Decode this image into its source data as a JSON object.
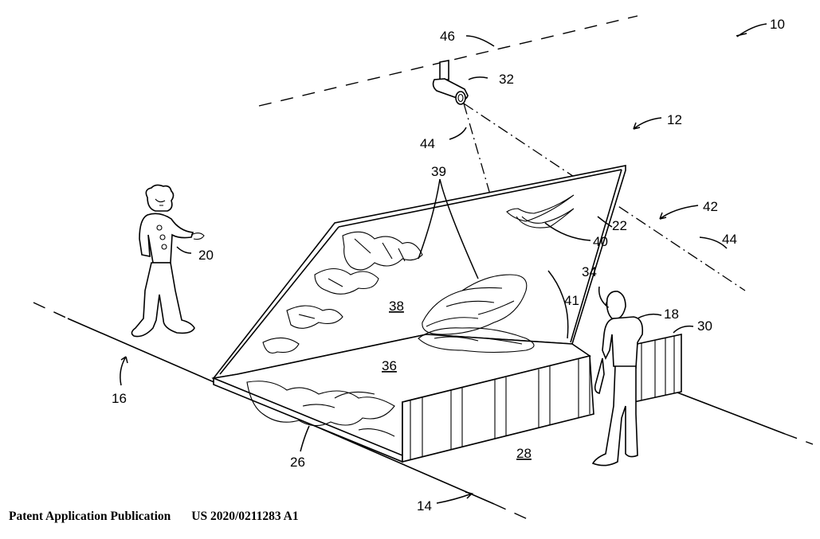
{
  "figure": {
    "ref_numerals": {
      "n10": "10",
      "n12": "12",
      "n14": "14",
      "n16": "16",
      "n18": "18",
      "n20": "20",
      "n22": "22",
      "n26": "26",
      "n28": "28",
      "n30": "30",
      "n32": "32",
      "n34": "34",
      "n36": "36",
      "n38": "38",
      "n39": "39",
      "n40": "40",
      "n41": "41",
      "n42": "42",
      "n44a": "44",
      "n44b": "44",
      "n46": "46"
    }
  },
  "footer": {
    "publication_label": "Patent Application Publication",
    "publication_number": "US 2020/0211283 A1"
  }
}
